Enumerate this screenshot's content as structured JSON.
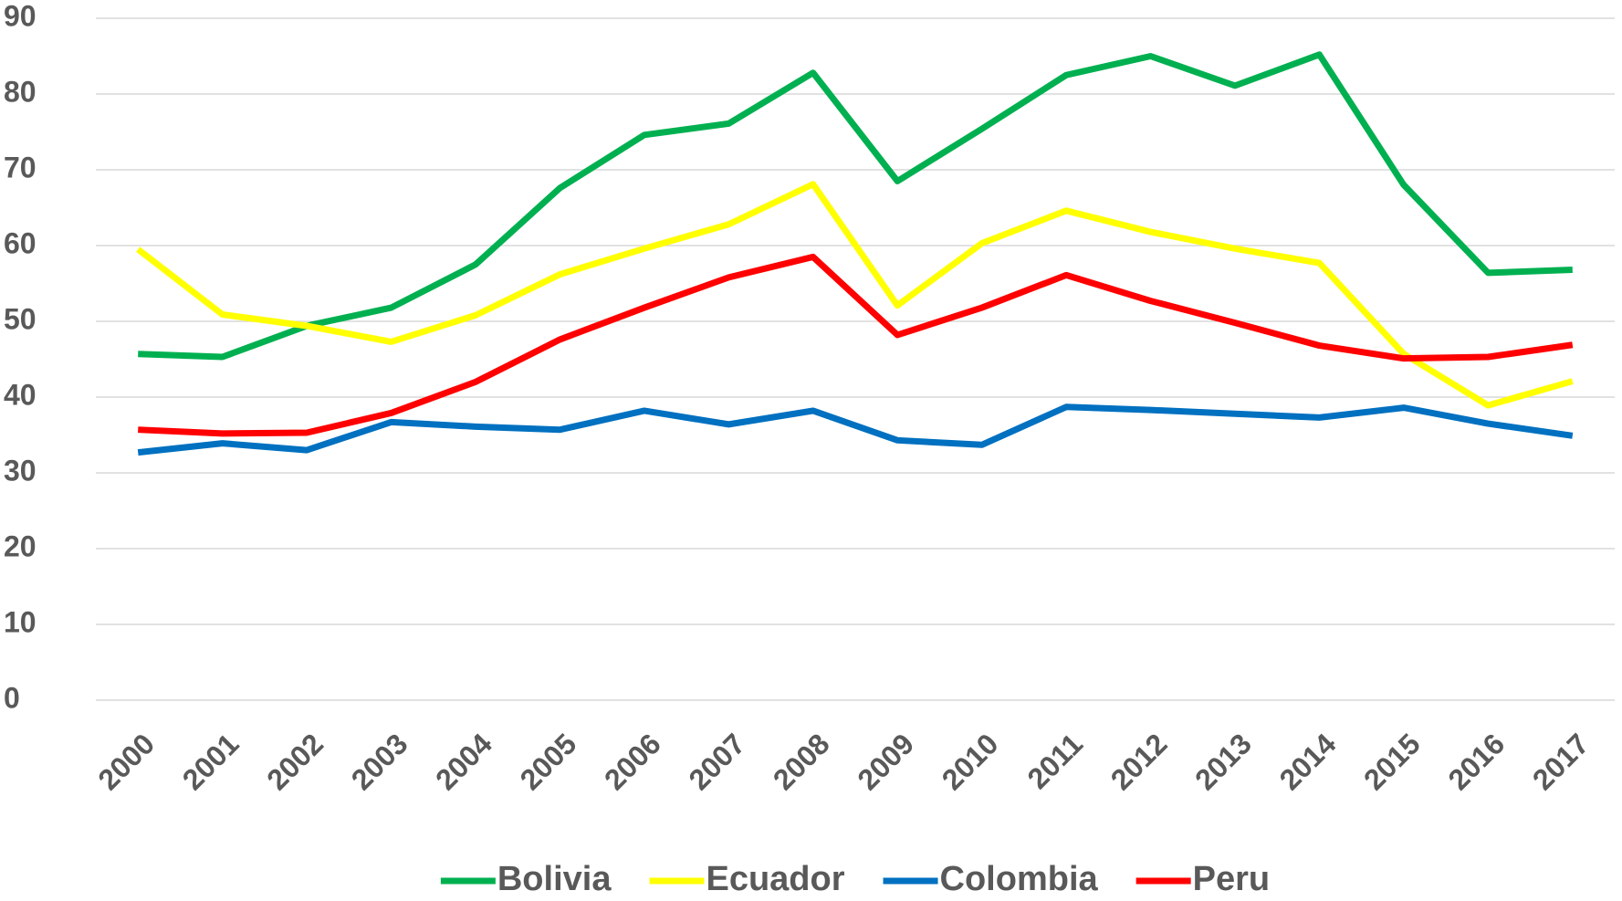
{
  "chart_data": {
    "type": "line",
    "categories": [
      "2000",
      "2001",
      "2002",
      "2003",
      "2004",
      "2005",
      "2006",
      "2007",
      "2008",
      "2009",
      "2010",
      "2011",
      "2012",
      "2013",
      "2014",
      "2015",
      "2016",
      "2017"
    ],
    "series": [
      {
        "name": "Bolivia",
        "color": "#00b050",
        "values": [
          45.7,
          45.3,
          49.4,
          51.8,
          57.5,
          67.6,
          74.6,
          76.1,
          82.8,
          68.5,
          75.4,
          82.5,
          85,
          81.1,
          85.2,
          68,
          56.4,
          56.8
        ]
      },
      {
        "name": "Ecuador",
        "color": "#ffff00",
        "values": [
          59.5,
          50.9,
          49.4,
          47.3,
          50.8,
          56.2,
          59.6,
          62.8,
          68.1,
          52.1,
          60.3,
          64.6,
          61.8,
          59.6,
          57.7,
          45.7,
          38.9,
          42.1
        ]
      },
      {
        "name": "Colombia",
        "color": "#0070c0",
        "values": [
          32.7,
          33.9,
          33,
          36.7,
          36.1,
          35.7,
          38.2,
          36.4,
          38.2,
          34.3,
          33.7,
          38.7,
          38.3,
          37.8,
          37.3,
          38.6,
          36.5,
          34.9
        ]
      },
      {
        "name": "Peru",
        "color": "#ff0000",
        "values": [
          35.7,
          35.2,
          35.3,
          37.9,
          42,
          47.6,
          51.8,
          55.8,
          58.5,
          48.2,
          51.8,
          56.1,
          52.7,
          49.8,
          46.8,
          45.1,
          45.3,
          46.9
        ]
      }
    ],
    "ylim": [
      0,
      90
    ],
    "yticks": [
      0,
      10,
      20,
      30,
      40,
      50,
      60,
      70,
      80,
      90
    ],
    "grid": true,
    "legend": "bottom"
  }
}
